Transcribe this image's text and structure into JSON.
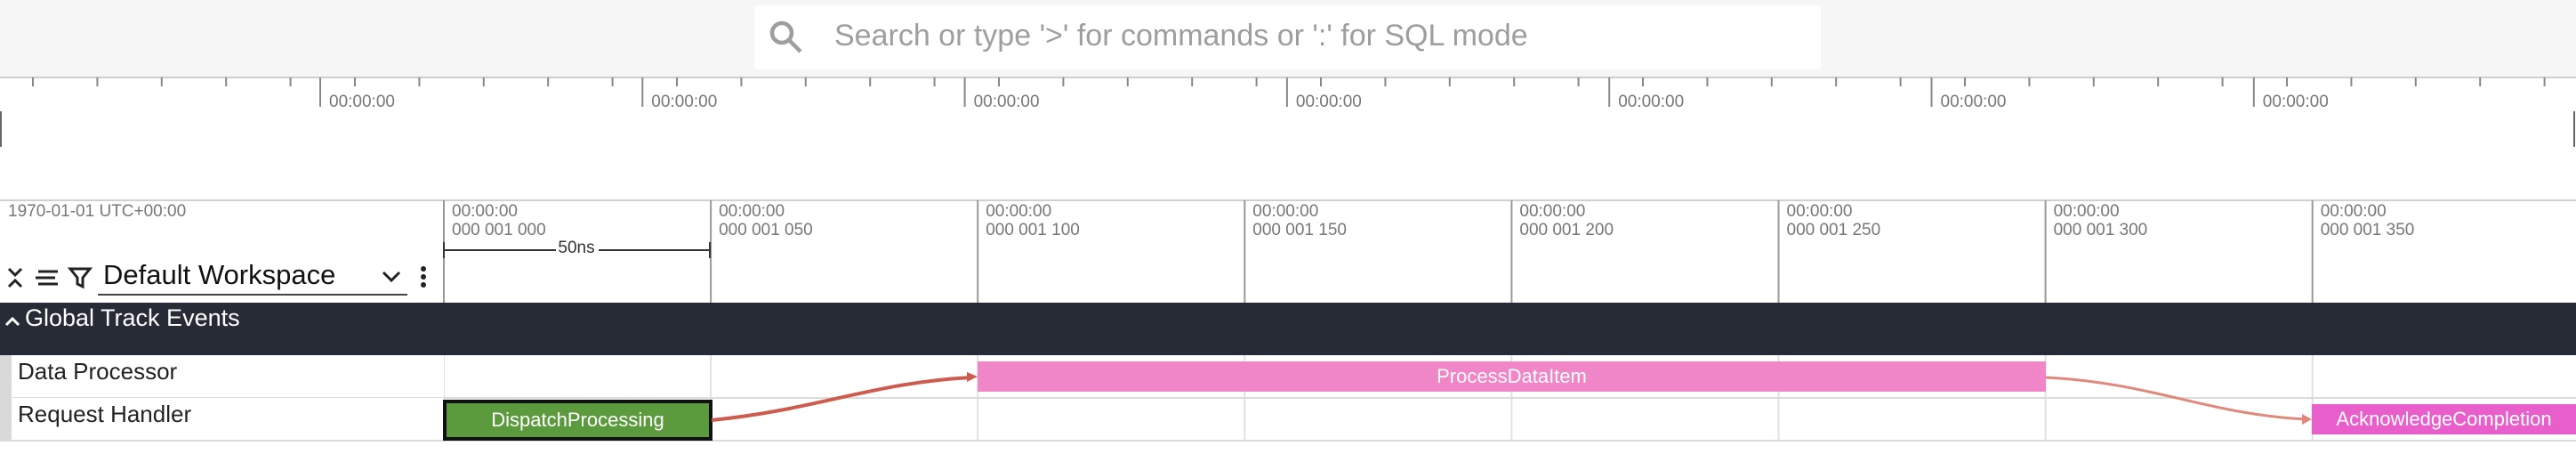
{
  "search": {
    "placeholder": "Search or type '>' for commands or ':' for SQL mode"
  },
  "overview": {
    "tick_labels": [
      "00:00:00",
      "00:00:00",
      "00:00:00",
      "00:00:00",
      "00:00:00",
      "00:00:00",
      "00:00:00"
    ]
  },
  "timeline": {
    "origin": "1970-01-01 UTC+00:00",
    "ticks": [
      {
        "time": "00:00:00",
        "offset": "000 001 000"
      },
      {
        "time": "00:00:00",
        "offset": "000 001 050"
      },
      {
        "time": "00:00:00",
        "offset": "000 001 100"
      },
      {
        "time": "00:00:00",
        "offset": "000 001 150"
      },
      {
        "time": "00:00:00",
        "offset": "000 001 200"
      },
      {
        "time": "00:00:00",
        "offset": "000 001 250"
      },
      {
        "time": "00:00:00",
        "offset": "000 001 300"
      },
      {
        "time": "00:00:00",
        "offset": "000 001 350"
      }
    ],
    "scale_label": "50ns"
  },
  "workspace": {
    "name": "Default Workspace"
  },
  "group": {
    "title": "Global Track Events"
  },
  "tracks": [
    {
      "name": "Data Processor",
      "slices": [
        {
          "name": "ProcessDataItem"
        }
      ]
    },
    {
      "name": "Request Handler",
      "slices": [
        {
          "name": "DispatchProcessing"
        },
        {
          "name": "AcknowledgeCompletion"
        }
      ]
    }
  ]
}
